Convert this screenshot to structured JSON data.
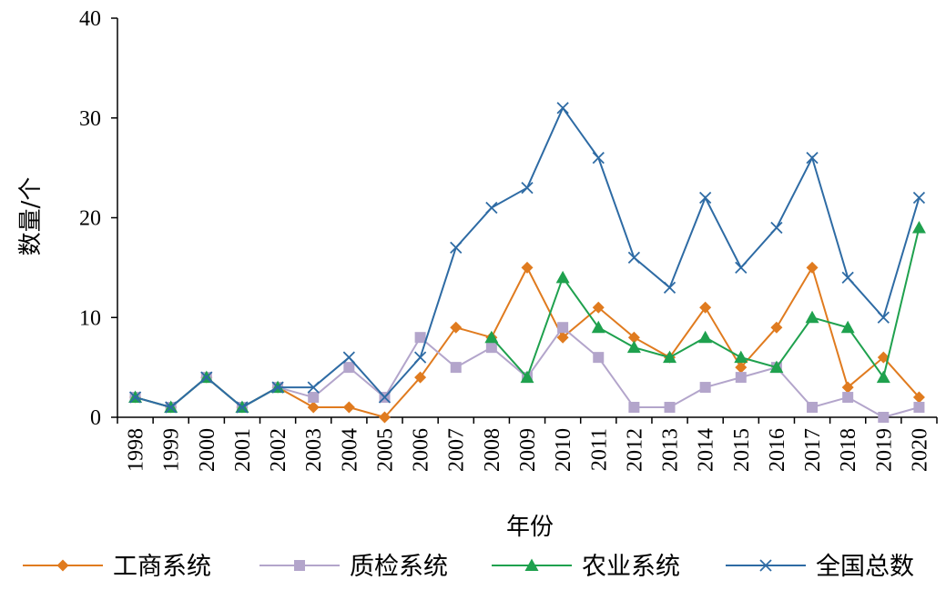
{
  "chart_data": {
    "type": "line",
    "title": "",
    "xlabel": "年份",
    "ylabel": "数量/个",
    "ylim": [
      0,
      40
    ],
    "yticks": [
      0,
      10,
      20,
      30,
      40
    ],
    "grid": false,
    "legend_position": "bottom",
    "categories": [
      "1998",
      "1999",
      "2000",
      "2001",
      "2002",
      "2003",
      "2004",
      "2005",
      "2006",
      "2007",
      "2008",
      "2009",
      "2010",
      "2011",
      "2012",
      "2013",
      "2014",
      "2015",
      "2016",
      "2017",
      "2018",
      "2019",
      "2020"
    ],
    "series": [
      {
        "name": "工商系统",
        "color": "#E07B1F",
        "marker": "diamond",
        "values": [
          2,
          1,
          4,
          1,
          3,
          1,
          1,
          0,
          4,
          9,
          8,
          15,
          8,
          11,
          8,
          6,
          11,
          5,
          9,
          15,
          3,
          6,
          2
        ]
      },
      {
        "name": "质检系统",
        "color": "#B3A5CB",
        "marker": "square",
        "values": [
          2,
          1,
          4,
          1,
          3,
          2,
          5,
          2,
          8,
          5,
          7,
          4,
          9,
          6,
          1,
          1,
          3,
          4,
          5,
          1,
          2,
          0,
          1
        ]
      },
      {
        "name": "农业系统",
        "color": "#1FA14E",
        "marker": "triangle",
        "values": [
          2,
          1,
          4,
          1,
          3,
          null,
          null,
          null,
          null,
          null,
          8,
          4,
          14,
          9,
          7,
          6,
          8,
          6,
          5,
          10,
          9,
          4,
          19
        ]
      },
      {
        "name": "全国总数",
        "color": "#2E6BA4",
        "marker": "x",
        "values": [
          2,
          1,
          4,
          1,
          3,
          3,
          6,
          2,
          6,
          17,
          21,
          23,
          31,
          26,
          16,
          13,
          22,
          15,
          19,
          26,
          14,
          10,
          22
        ]
      }
    ]
  }
}
